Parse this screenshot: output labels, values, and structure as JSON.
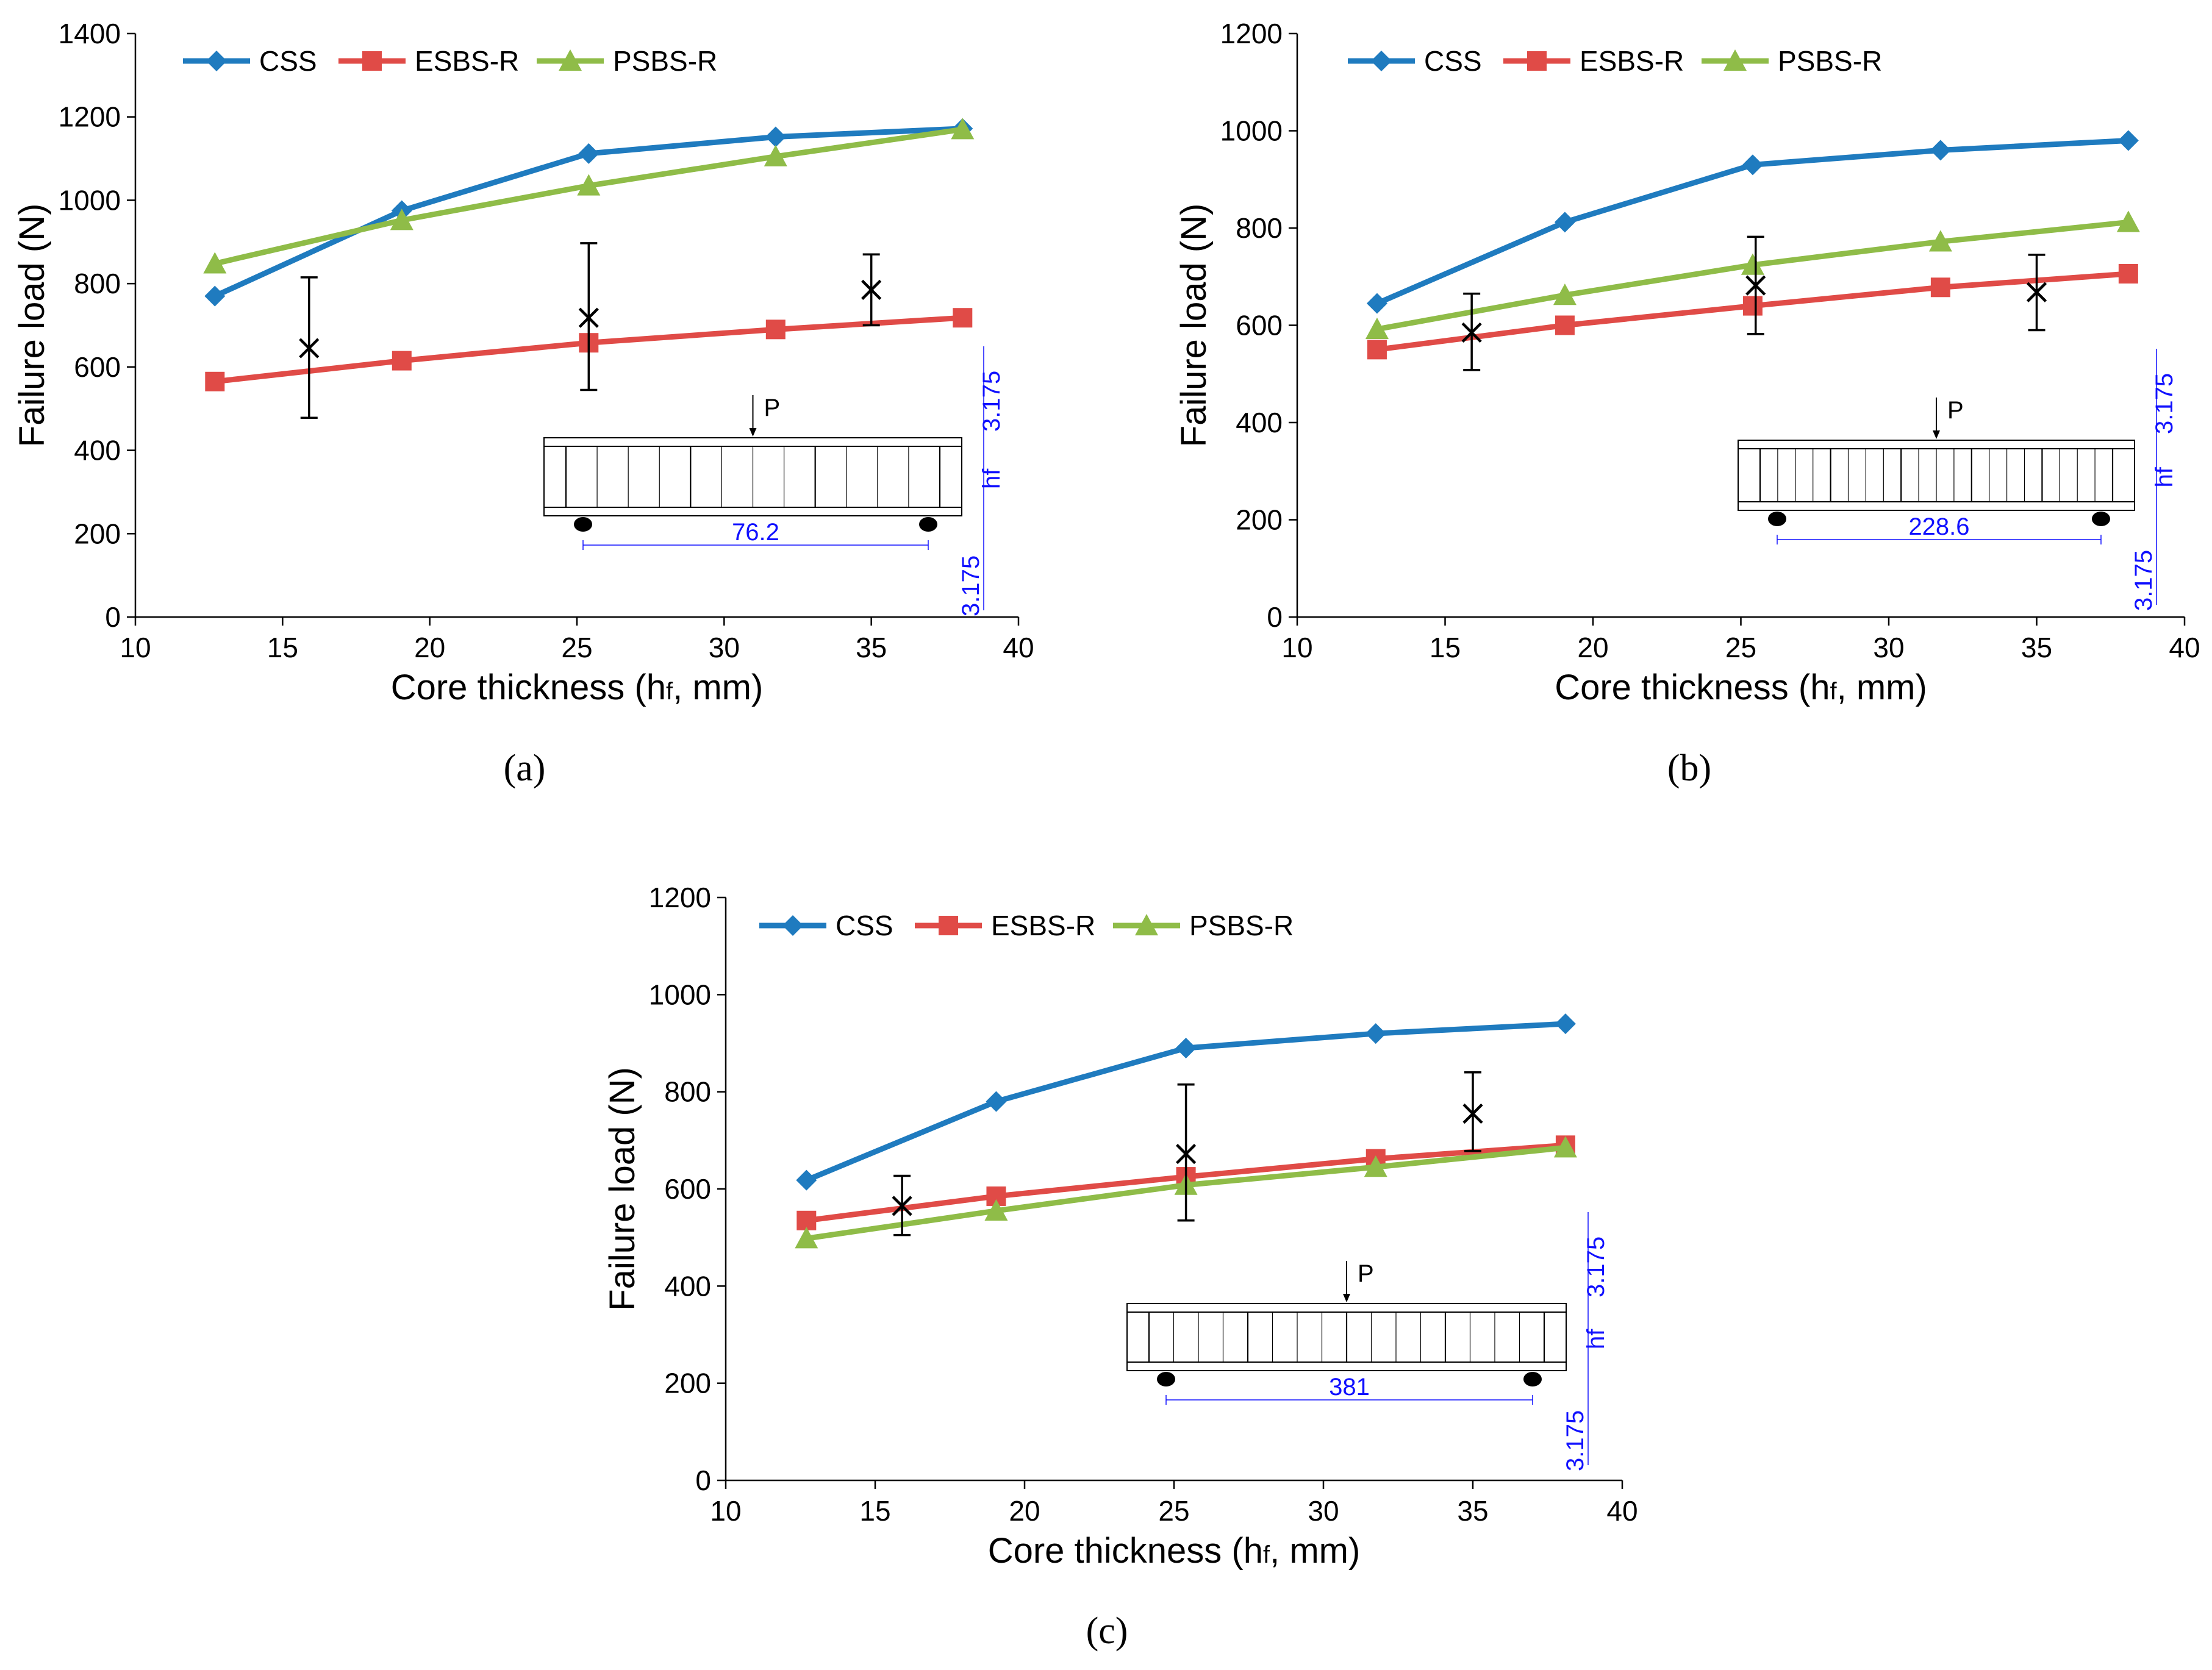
{
  "figure": {
    "colors": {
      "CSS": "#1f7bbf",
      "ESBS-R": "#e04b47",
      "PSBS-R": "#8fbc48",
      "error": "#000000",
      "dimension": "#1010ff"
    }
  },
  "chart_data": [
    {
      "type": "line",
      "panel_label": "(a)",
      "xlabel": "Core thickness (hf, mm)",
      "ylabel": "Failure load (N)",
      "xlim": [
        10,
        40
      ],
      "ylim": [
        0,
        1400
      ],
      "xticks": [
        "10",
        "15",
        "20",
        "25",
        "30",
        "35",
        "40"
      ],
      "yticks": [
        "0",
        "200",
        "400",
        "600",
        "800",
        "1000",
        "1200",
        "1400"
      ],
      "legend_position": "top-left",
      "x": [
        12.7,
        19.05,
        25.4,
        31.75,
        38.1
      ],
      "series": [
        {
          "name": "CSS",
          "marker": "diamond",
          "values": [
            770,
            975,
            1112,
            1152,
            1172
          ]
        },
        {
          "name": "ESBS-R",
          "marker": "square",
          "values": [
            565,
            615,
            658,
            690,
            718
          ]
        },
        {
          "name": "PSBS-R",
          "marker": "triangle",
          "values": [
            848,
            952,
            1035,
            1105,
            1170
          ]
        }
      ],
      "experimental": [
        {
          "x": 15.9,
          "mean": 645,
          "low": 478,
          "high": 815
        },
        {
          "x": 25.4,
          "mean": 718,
          "low": 545,
          "high": 897
        },
        {
          "x": 35.0,
          "mean": 785,
          "low": 700,
          "high": 870
        }
      ],
      "inset": {
        "load": "P",
        "span": "76.2",
        "face_top": "3.175",
        "face_bottom": "3.175",
        "core": "hf",
        "cells": 12
      }
    },
    {
      "type": "line",
      "panel_label": "(b)",
      "xlabel": "Core thickness (hf, mm)",
      "ylabel": "Failure load (N)",
      "xlim": [
        10,
        40
      ],
      "ylim": [
        0,
        1200
      ],
      "xticks": [
        "10",
        "15",
        "20",
        "25",
        "30",
        "35",
        "40"
      ],
      "yticks": [
        "0",
        "200",
        "400",
        "600",
        "800",
        "1000",
        "1200"
      ],
      "legend_position": "top-left",
      "x": [
        12.7,
        19.05,
        25.4,
        31.75,
        38.1
      ],
      "series": [
        {
          "name": "CSS",
          "marker": "diamond",
          "values": [
            645,
            812,
            930,
            960,
            980
          ]
        },
        {
          "name": "ESBS-R",
          "marker": "square",
          "values": [
            550,
            600,
            640,
            678,
            706
          ]
        },
        {
          "name": "PSBS-R",
          "marker": "triangle",
          "values": [
            592,
            662,
            724,
            772,
            812
          ]
        }
      ],
      "experimental": [
        {
          "x": 15.9,
          "mean": 585,
          "low": 508,
          "high": 665
        },
        {
          "x": 25.5,
          "mean": 682,
          "low": 582,
          "high": 782
        },
        {
          "x": 35.0,
          "mean": 668,
          "low": 590,
          "high": 745
        }
      ],
      "inset": {
        "load": "P",
        "span": "228.6",
        "face_top": "3.175",
        "face_bottom": "3.175",
        "core": "hf",
        "cells": 20
      }
    },
    {
      "type": "line",
      "panel_label": "(c)",
      "xlabel": "Core thickness (hf, mm)",
      "ylabel": "Failure load (N)",
      "xlim": [
        10,
        40
      ],
      "ylim": [
        0,
        1200
      ],
      "xticks": [
        "10",
        "15",
        "20",
        "25",
        "30",
        "35",
        "40"
      ],
      "yticks": [
        "0",
        "200",
        "400",
        "600",
        "800",
        "1000",
        "1200"
      ],
      "legend_position": "top-left",
      "x": [
        12.7,
        19.05,
        25.4,
        31.75,
        38.1
      ],
      "series": [
        {
          "name": "CSS",
          "marker": "diamond",
          "values": [
            618,
            780,
            890,
            920,
            940
          ]
        },
        {
          "name": "ESBS-R",
          "marker": "square",
          "values": [
            535,
            585,
            625,
            662,
            690
          ]
        },
        {
          "name": "PSBS-R",
          "marker": "triangle",
          "values": [
            498,
            555,
            608,
            645,
            685
          ]
        }
      ],
      "experimental": [
        {
          "x": 15.9,
          "mean": 565,
          "low": 505,
          "high": 627
        },
        {
          "x": 25.4,
          "mean": 672,
          "low": 535,
          "high": 815
        },
        {
          "x": 35.0,
          "mean": 755,
          "low": 678,
          "high": 840
        }
      ],
      "inset": {
        "load": "P",
        "span": "381",
        "face_top": "3.175",
        "face_bottom": "3.175",
        "core": "hf",
        "cells": 16
      }
    }
  ]
}
